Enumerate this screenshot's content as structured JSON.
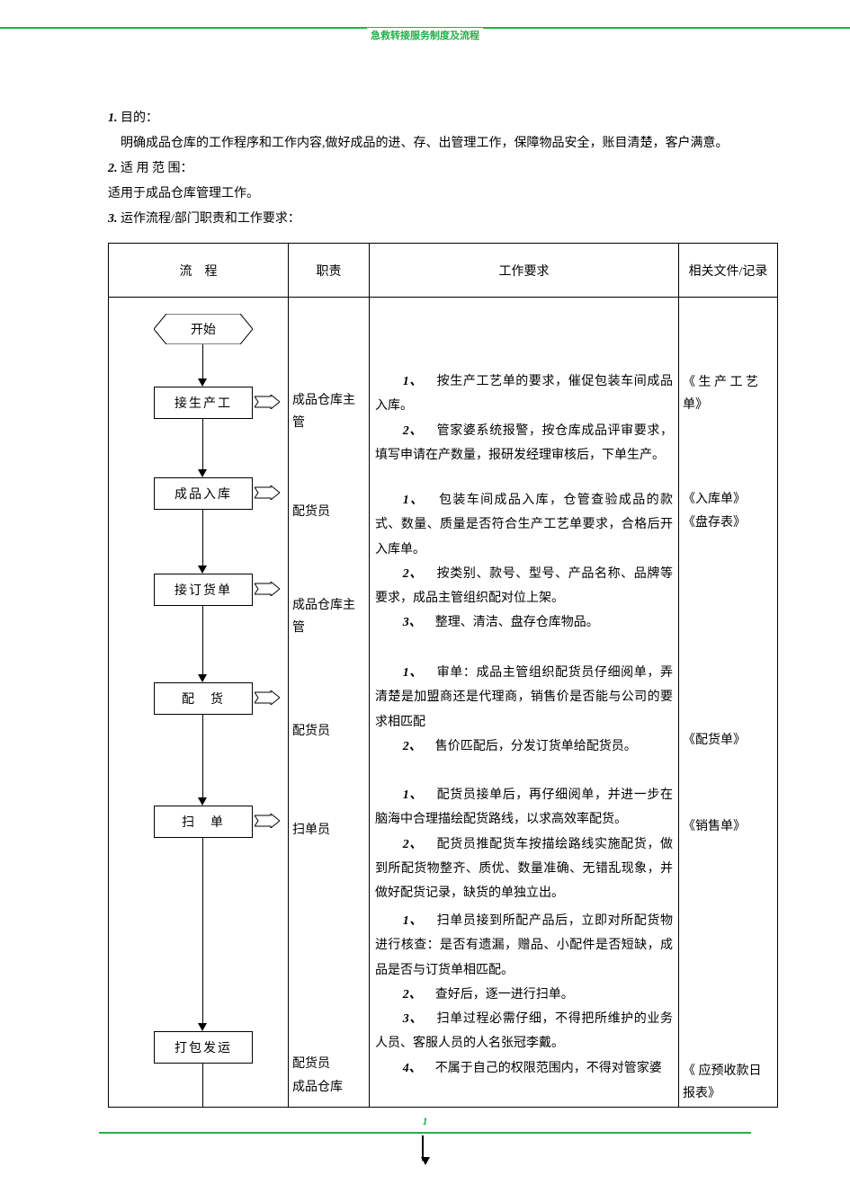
{
  "header": {
    "title": "急救转接服务制度及流程"
  },
  "intro": {
    "s1_label": "1.",
    "s1_name": "目的：",
    "s1_body": "明确成品仓库的工作程序和工作内容,做好成品的进、存、出管理工作，保障物品安全，账目清楚，客户满意。",
    "s2_label": "2.",
    "s2_name": "适 用 范 围：",
    "s2_body": "适用于成品仓库管理工作。",
    "s3_label": "3.",
    "s3_name": "运作流程/部门职责和工作要求："
  },
  "table": {
    "headers": {
      "flow": "流　程",
      "resp": "职责",
      "req": "工作要求",
      "docs": "相关文件/记录"
    }
  },
  "flow": {
    "start": "开始",
    "b1": "接生产工",
    "b2": "成品入库",
    "b3": "接订货单",
    "b4": "配　货",
    "b5": "扫　单",
    "b6": "打包发运"
  },
  "resp": {
    "r1": "成品仓库主管",
    "r2": "配货员",
    "r3": "成品仓库主管",
    "r4": "配货员",
    "r5": "扫单员",
    "r6a": "配货员",
    "r6b": "成品仓库"
  },
  "req": {
    "g1a": "1、　按生产工艺单的要求，催促包装车间成品入库。",
    "g1b": "2、　管家婆系统报警，按仓库成品评审要求，填写申请在产数量，报研发经理审核后，下单生产。",
    "g2a": "1、　包装车间成品入库，仓管查验成品的款式、数量、质量是否符合生产工艺单要求，合格后开入库单。",
    "g2b": "2、　按类别、款号、型号、产品名称、品牌等要求，成品主管组织配对位上架。",
    "g2c": "3、　整理、清洁、盘存仓库物品。",
    "g3a": "1、　审单：成品主管组织配货员仔细阅单，弄清楚是加盟商还是代理商，销售价是否能与公司的要求相匹配",
    "g3b": "2、　售价匹配后，分发订货单给配货员。",
    "g4a": "1、　配货员接单后，再仔细阅单，并进一步在脑海中合理描绘配货路线，以求高效率配货。",
    "g4b": "2、　配货员推配货车按描绘路线实施配货，做到所配货物整齐、质优、数量准确、无错乱现象，并做好配货记录，缺货的单独立出。",
    "g5a": "1、　扫单员接到所配产品后，立即对所配货物进行核查：是否有遗漏，赠品、小配件是否短缺，成品是否与订货单相匹配。",
    "g5b": "2、　查好后，逐一进行扫单。",
    "g5c": "3、　扫单过程必需仔细，不得把所维护的业务人员、客服人员的人名张冠李戴。",
    "g5d": "4、　不属于自己的权限范围内，不得对管家婆"
  },
  "docs": {
    "d1": "《 生 产 工 艺 单》",
    "d2a": "《入库单》",
    "d2b": "《盘存表》",
    "d3": "《配货单》",
    "d4": "《销售单》",
    "d5": "《 应预收款日报表》"
  },
  "page": {
    "num": "1"
  },
  "colors": {
    "accent": "#22b14c",
    "text": "#000000",
    "border": "#000000",
    "bg": "#ffffff"
  }
}
